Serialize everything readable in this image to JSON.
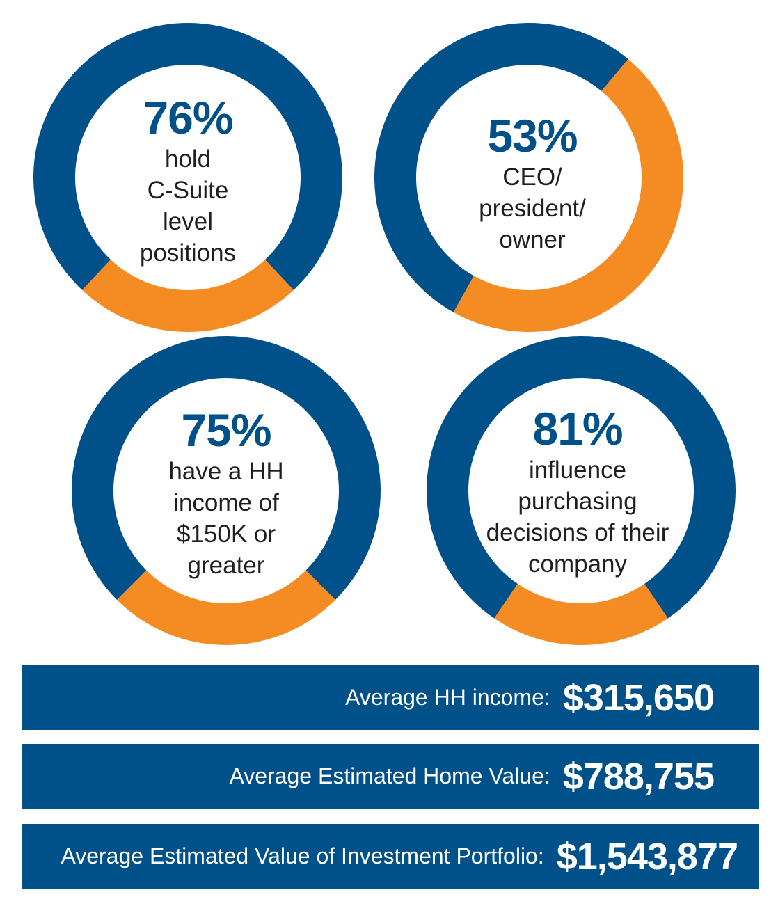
{
  "colors": {
    "primary": "#00508a",
    "accent": "#f58c23"
  },
  "chart_data": [
    {
      "type": "pie",
      "label": "76%",
      "description": "hold C-Suite level positions",
      "value": 76,
      "description_lines": [
        "hold",
        "C-Suite",
        "level",
        "positions"
      ]
    },
    {
      "type": "pie",
      "label": "53%",
      "description": "CEO/ president/ owner",
      "value": 53,
      "description_lines": [
        "CEO/",
        "president/",
        "owner"
      ]
    },
    {
      "type": "pie",
      "label": "75%",
      "description": "have a HH income of $150K or greater",
      "value": 75,
      "description_lines": [
        "have a HH",
        "income of",
        "$150K or",
        "greater"
      ]
    },
    {
      "type": "pie",
      "label": "81%",
      "description": "influence purchasing decisions of their company",
      "value": 81,
      "description_lines": [
        "influence",
        "purchasing",
        "decisions of their",
        "company"
      ]
    }
  ],
  "stats": [
    {
      "label": "Average HH income:",
      "value": "$315,650"
    },
    {
      "label": "Average Estimated Home Value:",
      "value": "$788,755"
    },
    {
      "label": "Average Estimated Value of Investment Portfolio:",
      "value": "$1,543,877"
    }
  ]
}
